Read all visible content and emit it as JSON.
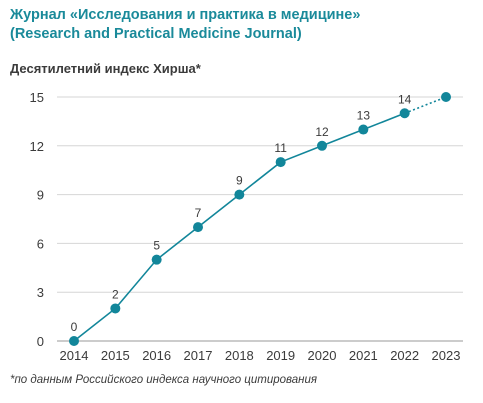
{
  "title_line1": "Журнал «Исследования и практика в медицине»",
  "title_line2": "(Research and Practical Medicine Journal)",
  "subtitle": "Десятилетний индекс Хирша*",
  "footnote": "*по данным Российского индекса научного цитирования",
  "colors": {
    "line": "#12869a",
    "title": "#1a8a9a",
    "grid": "#d6d6d6",
    "axis": "#3b3b3b"
  },
  "chart_data": {
    "type": "line",
    "x": [
      2014,
      2015,
      2016,
      2017,
      2018,
      2019,
      2020,
      2021,
      2022,
      2023
    ],
    "values": [
      0,
      2,
      5,
      7,
      9,
      11,
      12,
      13,
      14,
      15
    ],
    "data_labels": [
      "0",
      "2",
      "5",
      "7",
      "9",
      "11",
      "12",
      "13",
      "14",
      ""
    ],
    "projected_last_point": true,
    "yticks": [
      0,
      3,
      6,
      9,
      12,
      15
    ],
    "ylim": [
      0,
      15
    ],
    "grid": "horizontal"
  }
}
